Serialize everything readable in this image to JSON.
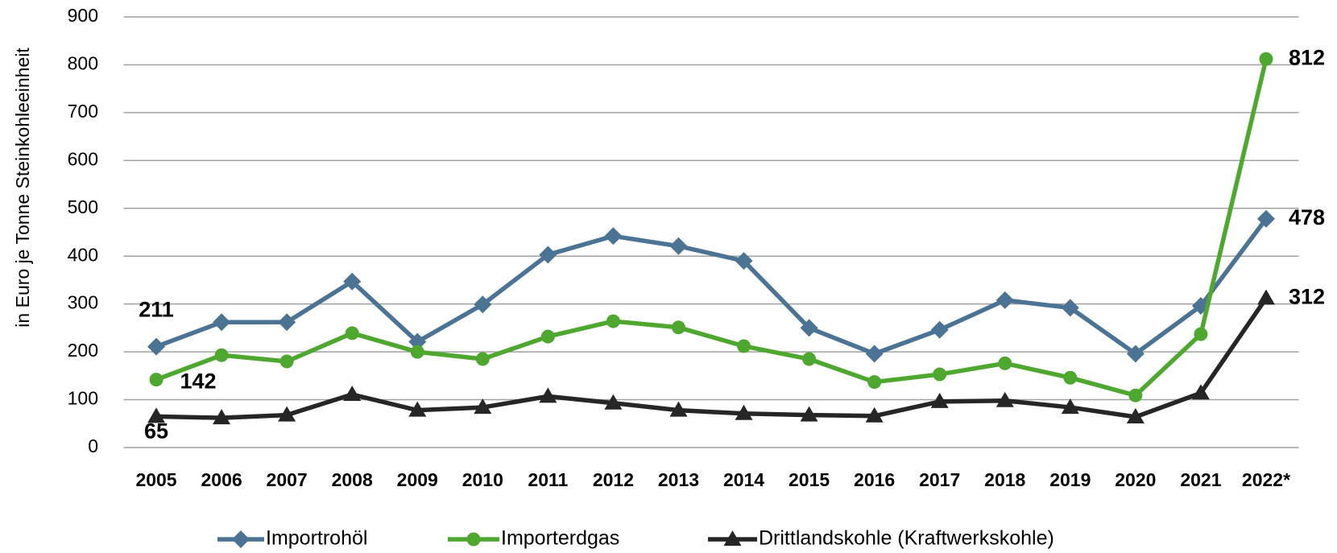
{
  "chart_data": {
    "type": "line",
    "y_label": "in Euro je Tonne Steinkohleeinheit",
    "categories": [
      "2005",
      "2006",
      "2007",
      "2008",
      "2009",
      "2010",
      "2011",
      "2012",
      "2013",
      "2014",
      "2015",
      "2016",
      "2017",
      "2018",
      "2019",
      "2020",
      "2021",
      "2022*"
    ],
    "series": [
      {
        "name": "Importrohöl",
        "color": "#4a7394",
        "marker": "diamond",
        "values": [
          211,
          262,
          262,
          347,
          221,
          299,
          403,
          442,
          421,
          390,
          250,
          196,
          246,
          308,
          292,
          196,
          296,
          478
        ]
      },
      {
        "name": "Importerdgas",
        "color": "#4ea72e",
        "marker": "circle",
        "values": [
          142,
          193,
          180,
          239,
          200,
          185,
          232,
          264,
          251,
          212,
          185,
          137,
          153,
          176,
          146,
          109,
          237,
          812
        ]
      },
      {
        "name": "Drittlandskohle (Kraftwerkskohle)",
        "color": "#262626",
        "marker": "triangle",
        "values": [
          65,
          62,
          68,
          111,
          78,
          84,
          107,
          93,
          78,
          71,
          68,
          66,
          96,
          98,
          84,
          64,
          114,
          312
        ]
      }
    ],
    "ylim": [
      0,
      900
    ],
    "yticks": [
      0,
      100,
      200,
      300,
      400,
      500,
      600,
      700,
      800,
      900
    ],
    "grid": true,
    "legend": "bottom"
  }
}
